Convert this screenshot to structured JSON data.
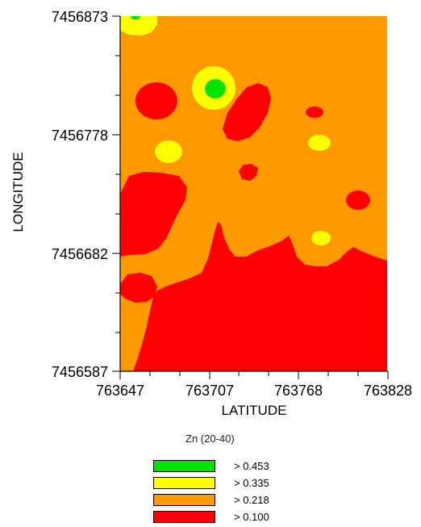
{
  "axes": {
    "xlabel": "LATITUDE",
    "ylabel": "LONGITUDE",
    "xticks": [
      "763647",
      "763707",
      "763768",
      "763828"
    ],
    "yticks": [
      "7456873",
      "7456778",
      "7456682",
      "7456587"
    ]
  },
  "colors": {
    "gt_0_453": "#00e400",
    "gt_0_335": "#ffff00",
    "gt_0_218": "#ff9900",
    "gt_0_100": "#ff0000"
  },
  "legend": {
    "title": "Zn (20-40)",
    "items": [
      {
        "label": "> 0.453",
        "color": "#00e400"
      },
      {
        "label": "> 0.335",
        "color": "#ffff00"
      },
      {
        "label": "> 0.218",
        "color": "#ff9900"
      },
      {
        "label": "> 0.100",
        "color": "#ff0000"
      }
    ]
  }
}
